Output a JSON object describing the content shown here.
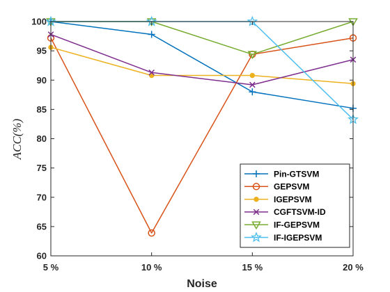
{
  "chart_data": {
    "type": "line",
    "title": "",
    "xlabel": "Noise",
    "ylabel": "ACC(%)",
    "categories": [
      "5 %",
      "10 %",
      "15 %",
      "20 %"
    ],
    "ylim": [
      60,
      100
    ],
    "yticks": [
      60,
      65,
      70,
      75,
      80,
      85,
      90,
      95,
      100
    ],
    "grid": false,
    "legend_position": "bottom-right",
    "series": [
      {
        "name": "Pin-GTSVM",
        "color": "#0072BD",
        "marker": "plus",
        "values": [
          100,
          97.8,
          88.0,
          85.2
        ]
      },
      {
        "name": "GEPSVM",
        "color": "#D95319",
        "marker": "circle",
        "values": [
          97.2,
          63.9,
          94.4,
          97.2
        ]
      },
      {
        "name": "IGEPSVM",
        "color": "#EDB120",
        "marker": "dot",
        "values": [
          95.6,
          90.8,
          90.8,
          89.4
        ]
      },
      {
        "name": "CGFTSVM-ID",
        "color": "#7E2F8E",
        "marker": "x",
        "values": [
          97.8,
          91.3,
          89.2,
          93.5
        ]
      },
      {
        "name": "IF-GEPSVM",
        "color": "#77AC30",
        "marker": "triangle",
        "values": [
          100,
          100,
          94.4,
          100
        ]
      },
      {
        "name": "IF-IGEPSVM",
        "color": "#4DBEEE",
        "marker": "star",
        "values": [
          100,
          100,
          100,
          83.3
        ]
      }
    ]
  }
}
